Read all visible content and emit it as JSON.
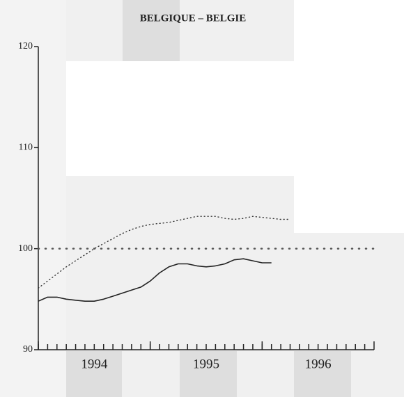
{
  "chart_data": {
    "type": "line",
    "title": "BELGIQUE – BELGIE",
    "x": [
      1994,
      1994.083,
      1994.167,
      1994.25,
      1994.333,
      1994.417,
      1994.5,
      1994.583,
      1994.667,
      1994.75,
      1994.833,
      1994.917,
      1995,
      1995.083,
      1995.167,
      1995.25,
      1995.333,
      1995.417,
      1995.5,
      1995.583,
      1995.667,
      1995.75,
      1995.833,
      1995.917,
      1996,
      1996.083,
      1996.167,
      1996.25
    ],
    "series": [
      {
        "color": "#222222",
        "dash": "solid",
        "values": [
          94.8,
          95.2,
          95.2,
          95.0,
          94.9,
          94.8,
          94.8,
          95.0,
          95.3,
          95.6,
          95.9,
          96.2,
          96.8,
          97.6,
          98.2,
          98.5,
          98.5,
          98.3,
          98.2,
          98.3,
          98.5,
          98.9,
          99.0,
          98.8,
          98.6,
          98.6,
          null,
          null
        ]
      },
      {
        "color": "#333333",
        "dash": "dotted",
        "values": [
          96.1,
          96.8,
          97.5,
          98.2,
          98.8,
          99.4,
          100.0,
          100.5,
          101.0,
          101.5,
          101.9,
          102.2,
          102.4,
          102.5,
          102.6,
          102.8,
          103.0,
          103.2,
          103.2,
          103.2,
          103.0,
          102.9,
          103.0,
          103.2,
          103.1,
          103.0,
          102.9,
          102.9
        ]
      }
    ],
    "reference_line": 100,
    "xlim": [
      1994,
      1997
    ],
    "xticks": [
      1994,
      1995,
      1996,
      1997
    ],
    "ylim": [
      90,
      120
    ],
    "yticks": [
      90,
      100,
      110,
      120
    ]
  }
}
